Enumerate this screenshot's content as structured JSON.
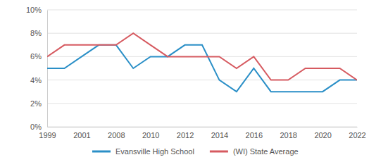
{
  "chart_data": {
    "type": "line",
    "categories": [
      "1999",
      null,
      "2001",
      null,
      "2008",
      null,
      "2010",
      null,
      "2012",
      null,
      "2014",
      null,
      "2016",
      null,
      "2018",
      null,
      "2020",
      null,
      "2022"
    ],
    "series": [
      {
        "name": "Evansville High School",
        "color": "#2a8fc7",
        "values": [
          5,
          5,
          6,
          7,
          7,
          5,
          6,
          6,
          7,
          7,
          4,
          3,
          5,
          3,
          3,
          3,
          3,
          4,
          4
        ]
      },
      {
        "name": "(WI) State Average",
        "color": "#d65a60",
        "values": [
          6,
          7,
          7,
          7,
          7,
          8,
          7,
          6,
          6,
          6,
          6,
          5,
          6,
          4,
          4,
          5,
          5,
          5,
          4
        ]
      }
    ],
    "ylim": [
      0,
      10
    ],
    "yticks": [
      {
        "value": 0,
        "label": "0%"
      },
      {
        "value": 2,
        "label": "2%"
      },
      {
        "value": 4,
        "label": "4%"
      },
      {
        "value": 6,
        "label": "6%"
      },
      {
        "value": 8,
        "label": "8%"
      },
      {
        "value": 10,
        "label": "10%"
      }
    ],
    "grid": true,
    "legend": "bottom"
  }
}
